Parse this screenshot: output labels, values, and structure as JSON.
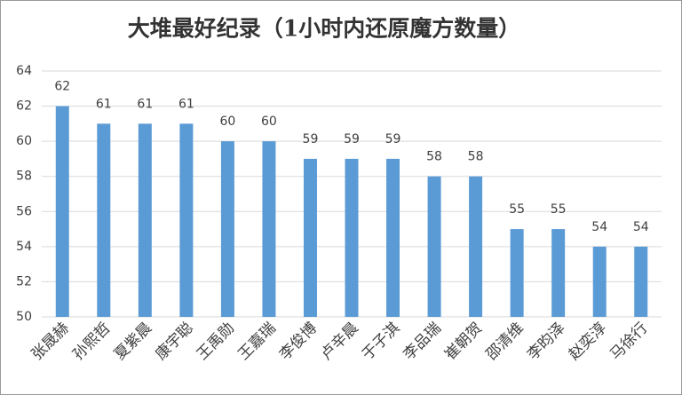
{
  "chart_data": {
    "type": "bar",
    "title": "大堆最好纪录（1小时内还原魔方数量）",
    "categories": [
      "张晟赫",
      "孙熙哲",
      "夏紫晨",
      "康宇聪",
      "王禹勋",
      "王嘉瑞",
      "李俊博",
      "卢辛晨",
      "于子淇",
      "李品瑞",
      "崔朝贺",
      "邵清维",
      "李昀泽",
      "赵奕淳",
      "马徐行"
    ],
    "values": [
      62,
      61,
      61,
      61,
      60,
      60,
      59,
      59,
      59,
      58,
      58,
      55,
      55,
      54,
      54
    ],
    "color": "#5b9bd5",
    "ylim": [
      50,
      64
    ],
    "yticks": [
      50,
      52,
      54,
      56,
      58,
      60,
      62,
      64
    ],
    "grid": true
  }
}
